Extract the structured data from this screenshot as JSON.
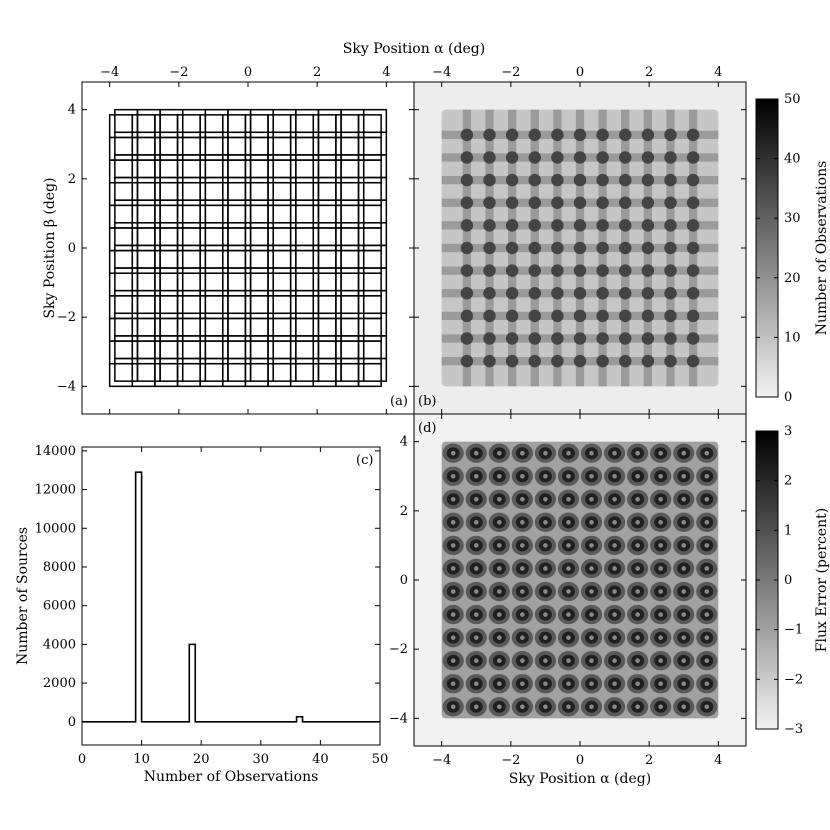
{
  "figure": {
    "top_xlabel": "Sky Position α (deg)",
    "bottom_xlabel_d": "Sky Position α (deg)",
    "left_ylabel_a": "Sky Position β (deg)"
  },
  "chart_data": [
    {
      "panel": "a",
      "type": "diagram",
      "label": "(a)",
      "xlim": [
        -4.8,
        4.8
      ],
      "ylim": [
        -4.8,
        4.8
      ],
      "xticks": [
        -4,
        -2,
        0,
        2,
        4
      ],
      "yticks": [
        -4,
        -2,
        0,
        2,
        4
      ],
      "xticks_position": "top",
      "ylabel": "Sky Position β (deg)",
      "grid_extent": [
        -4,
        4
      ],
      "cells_per_side": 12,
      "cell_offsets": [
        0,
        0.15
      ],
      "line_color": "#000000"
    },
    {
      "panel": "b",
      "type": "heatmap",
      "label": "(b)",
      "xlim": [
        -4.8,
        4.8
      ],
      "ylim": [
        -4.8,
        4.8
      ],
      "xticks": [
        -4,
        -2,
        0,
        2,
        4
      ],
      "xticks_position": "top",
      "colorbar": {
        "label": "Number of Observations",
        "range": [
          0,
          50
        ],
        "ticks": [
          0,
          10,
          20,
          30,
          40,
          50
        ],
        "cmap": "gray_r"
      },
      "background_value": 1,
      "base_value": 9,
      "overlap_strip_value": 18,
      "overlap_corner_value": 36
    },
    {
      "panel": "c",
      "type": "bar",
      "label": "(c)",
      "xlabel": "Number of Observations",
      "ylabel": "Number of Sources",
      "xlim": [
        0,
        50
      ],
      "ylim": [
        -1200,
        14200
      ],
      "xticks": [
        0,
        10,
        20,
        30,
        40,
        50
      ],
      "yticks": [
        0,
        2000,
        4000,
        6000,
        8000,
        10000,
        12000,
        14000
      ],
      "histogram": [
        {
          "x0": 9,
          "x1": 10,
          "value": 12900
        },
        {
          "x0": 18,
          "x1": 19,
          "value": 4000
        },
        {
          "x0": 36,
          "x1": 37,
          "value": 260
        }
      ]
    },
    {
      "panel": "d",
      "type": "heatmap",
      "label": "(d)",
      "xlabel": "Sky Position α (deg)",
      "xlim": [
        -4.8,
        4.8
      ],
      "ylim": [
        -4.8,
        4.8
      ],
      "xticks": [
        -4,
        -2,
        0,
        2,
        4
      ],
      "yticks": [
        -4,
        -2,
        0,
        2,
        4
      ],
      "colorbar": {
        "label": "Flux Error (percent)",
        "range": [
          -3,
          3
        ],
        "ticks": [
          -3,
          -2,
          -1,
          0,
          1,
          2,
          3
        ],
        "cmap": "gray_r"
      },
      "background_value": -3,
      "peak_value": 3
    }
  ]
}
